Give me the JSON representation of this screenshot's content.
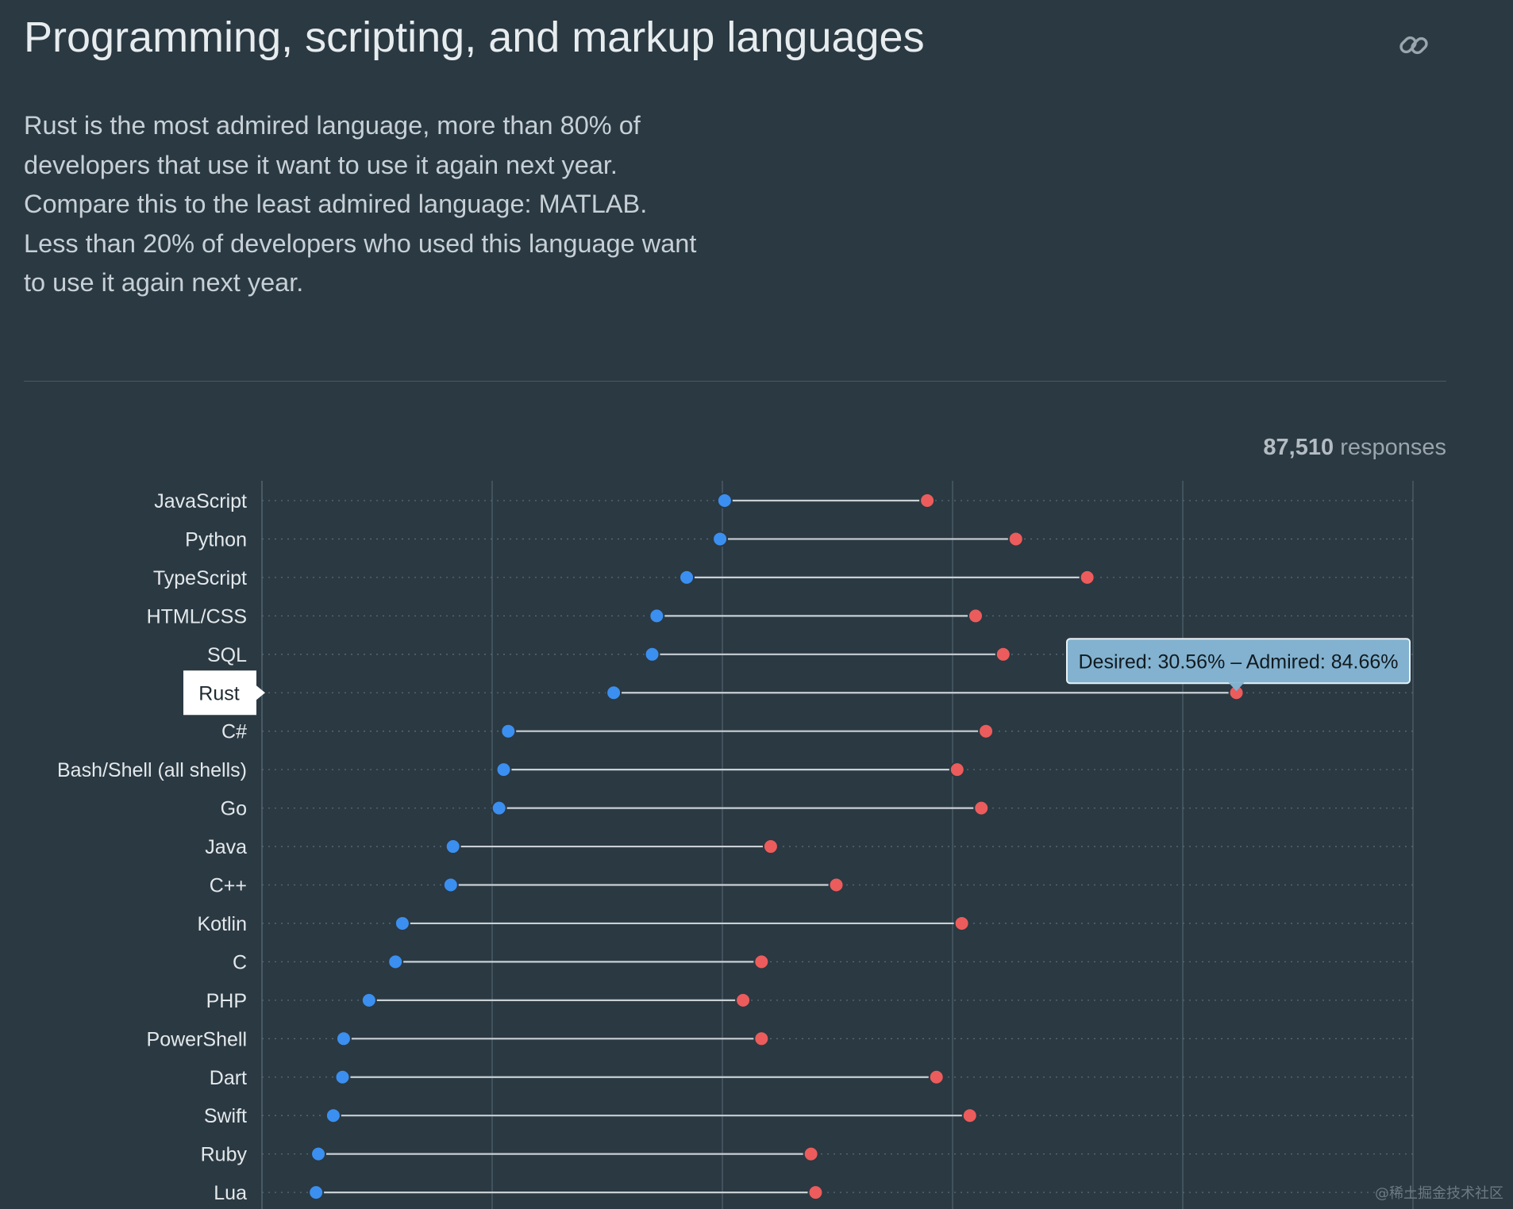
{
  "header": {
    "title": "Programming, scripting, and markup languages",
    "link_icon": "link-icon"
  },
  "description": "Rust is the most admired language, more than 80% of developers that use it want to use it again next year. Compare this to the least admired language: MATLAB. Less than 20% of developers who used this language want to use it again next year.",
  "responses": {
    "count": "87,510",
    "label": "responses"
  },
  "colors": {
    "background": "#2b3942",
    "desired_dot": "#3b8ff0",
    "admired_dot": "#ec5c5c",
    "connector": "#c9d0d5",
    "gridline": "#4a5a65",
    "tooltip_bg": "#82b2cf",
    "highlight_label_bg": "#ffffff"
  },
  "tooltip": {
    "text": "Desired: 30.56% – Admired: 84.66%"
  },
  "watermark": "@稀土掘金技术社区",
  "chart_data": {
    "type": "dumbbell",
    "title": "",
    "xlabel": "",
    "ylabel": "",
    "xlim": [
      0,
      100
    ],
    "grid": true,
    "highlighted": "Rust",
    "categories": [
      "JavaScript",
      "Python",
      "TypeScript",
      "HTML/CSS",
      "SQL",
      "Rust",
      "C#",
      "Bash/Shell (all shells)",
      "Go",
      "Java",
      "C++",
      "Kotlin",
      "C",
      "PHP",
      "PowerShell",
      "Dart",
      "Swift",
      "Ruby",
      "Lua"
    ],
    "series": [
      {
        "name": "Desired",
        "values": [
          40.2,
          39.8,
          36.9,
          34.3,
          33.9,
          30.56,
          21.4,
          21.0,
          20.6,
          16.6,
          16.4,
          12.2,
          11.6,
          9.3,
          7.1,
          7.0,
          6.2,
          4.9,
          4.7
        ]
      },
      {
        "name": "Admired",
        "values": [
          57.8,
          65.5,
          71.7,
          62.0,
          64.4,
          84.66,
          62.9,
          60.4,
          62.5,
          44.2,
          49.9,
          60.8,
          43.4,
          41.8,
          43.4,
          58.6,
          61.5,
          47.7,
          48.1
        ]
      }
    ]
  }
}
